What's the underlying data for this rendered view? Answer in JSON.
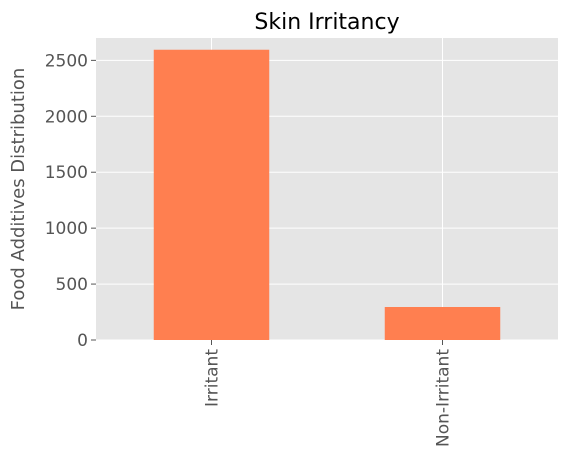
{
  "chart_data": {
    "type": "bar",
    "title": "Skin Irritancy",
    "xlabel": "",
    "ylabel": "Food Additives Distribution",
    "categories": [
      "Irritant",
      "Non-Irritant"
    ],
    "values": [
      2595,
      295
    ],
    "ylim": [
      0,
      2700
    ],
    "yticks": [
      0,
      500,
      1000,
      1500,
      2000,
      2500
    ],
    "ytick_labels": [
      "0",
      "500",
      "1000",
      "1500",
      "2000",
      "2500"
    ],
    "grid": true,
    "legend": "none",
    "colors": {
      "bar": "#ff7f50",
      "plot_background": "#e5e5e5",
      "grid": "#ffffff"
    }
  }
}
